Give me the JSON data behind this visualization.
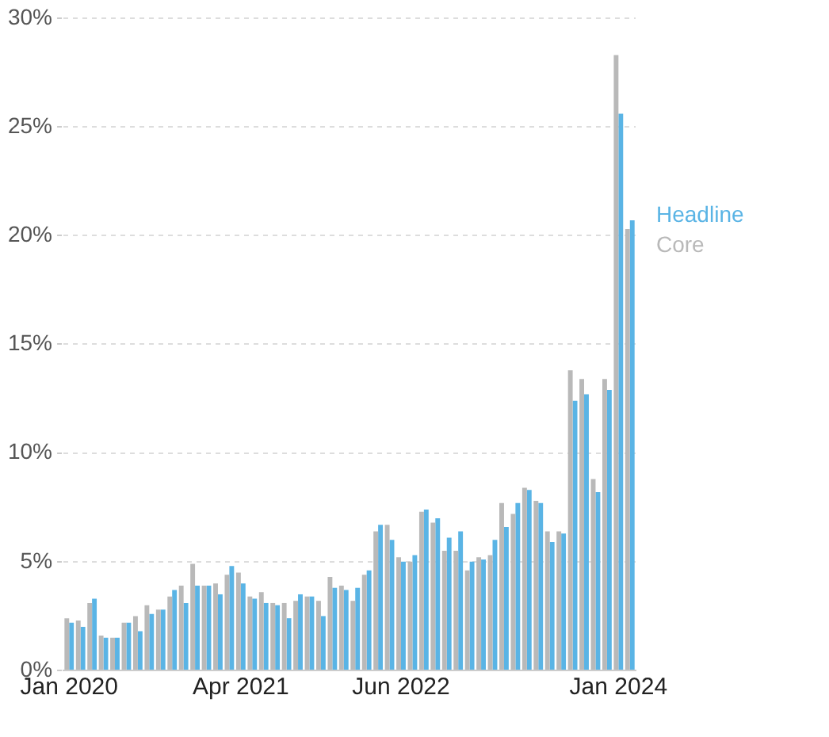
{
  "chart_data": {
    "type": "bar",
    "categories": [
      "Jan 2020",
      null,
      null,
      null,
      null,
      null,
      null,
      null,
      null,
      null,
      null,
      null,
      null,
      null,
      null,
      "Apr 2021",
      null,
      null,
      null,
      null,
      null,
      null,
      null,
      null,
      null,
      null,
      null,
      null,
      null,
      "Jun 2022",
      null,
      null,
      null,
      null,
      null,
      null,
      null,
      null,
      null,
      null,
      null,
      null,
      null,
      null,
      null,
      null,
      null,
      null,
      "Jan 2024",
      null
    ],
    "series": [
      {
        "name": "Headline",
        "color": "#5ab4e5",
        "values": [
          2.2,
          2.0,
          3.3,
          1.5,
          1.5,
          2.2,
          1.8,
          2.6,
          2.8,
          3.7,
          3.1,
          3.9,
          3.9,
          3.5,
          4.8,
          4.0,
          3.3,
          3.1,
          3.0,
          2.4,
          3.5,
          3.4,
          2.5,
          3.8,
          3.7,
          3.8,
          4.6,
          6.7,
          6.0,
          5.0,
          5.3,
          7.4,
          7.0,
          6.1,
          6.4,
          5.0,
          5.1,
          6.0,
          6.6,
          7.7,
          8.3,
          7.7,
          5.9,
          6.3,
          12.4,
          12.7,
          8.2,
          12.9,
          25.6,
          20.7
        ]
      },
      {
        "name": "Core",
        "color": "#b9b9b9",
        "values": [
          2.4,
          2.3,
          3.1,
          1.6,
          1.5,
          2.2,
          2.5,
          3.0,
          2.8,
          3.4,
          3.9,
          4.9,
          3.9,
          4.0,
          4.4,
          4.5,
          3.4,
          3.6,
          3.1,
          3.1,
          3.2,
          3.4,
          3.2,
          4.3,
          3.9,
          3.2,
          4.4,
          6.4,
          6.7,
          5.2,
          5.0,
          7.3,
          6.8,
          5.5,
          5.5,
          4.6,
          5.2,
          5.3,
          7.7,
          7.2,
          8.4,
          7.8,
          6.4,
          6.4,
          13.8,
          13.4,
          8.8,
          13.4,
          28.3,
          20.3
        ]
      }
    ],
    "ylim": [
      0,
      30
    ],
    "yticks": [
      {
        "value": 0,
        "label": "0%"
      },
      {
        "value": 5,
        "label": "5%"
      },
      {
        "value": 10,
        "label": "10%"
      },
      {
        "value": 15,
        "label": "15%"
      },
      {
        "value": 20,
        "label": "20%"
      },
      {
        "value": 25,
        "label": "25%"
      },
      {
        "value": 30,
        "label": "30%"
      }
    ],
    "grid": "y",
    "legend": "right"
  }
}
